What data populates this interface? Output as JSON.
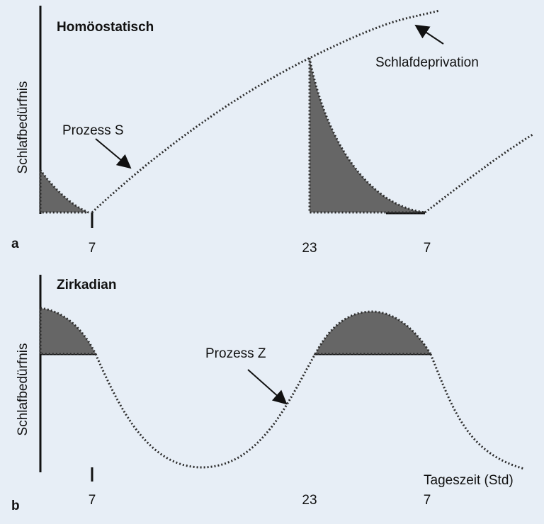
{
  "panels": [
    {
      "letter": "a",
      "title": "Homöostatisch",
      "y_label": "Schlafbedürfnis",
      "x_labels": [
        "7",
        "23",
        "7"
      ],
      "annotations": [
        "Prozess S",
        "Schlafdeprivation"
      ]
    },
    {
      "letter": "b",
      "title": "Zirkadian",
      "y_label": "Schlafbedürfnis",
      "x_labels": [
        "7",
        "23",
        "7"
      ],
      "annotations": [
        "Prozess Z"
      ],
      "x_title": "Tageszeit (Std)"
    }
  ]
}
